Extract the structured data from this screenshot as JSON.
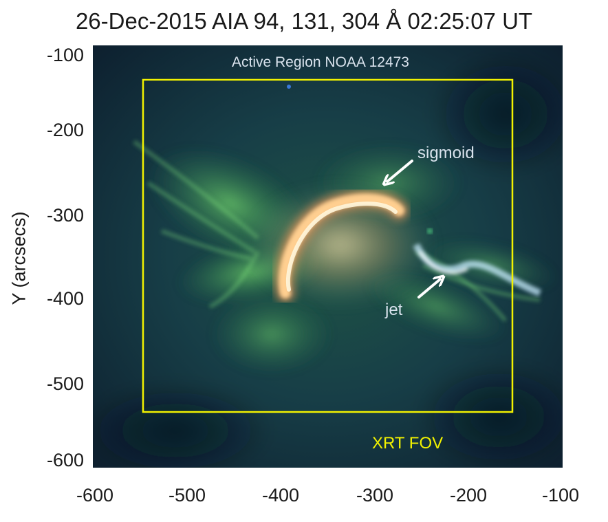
{
  "title": "26-Dec-2015 AIA 94, 131, 304 Å 02:25:07 UT",
  "ylabel": "Y (arcsecs)",
  "yticks": [
    "-100",
    "-200",
    "-300",
    "-400",
    "-500",
    "-600"
  ],
  "xticks": [
    "-600",
    "-500",
    "-400",
    "-300",
    "-200",
    "-100"
  ],
  "annotations": {
    "region": "Active Region NOAA 12473",
    "sigmoid": "sigmoid",
    "jet": "jet",
    "fov": "XRT FOV"
  },
  "colors": {
    "background": "#0e2233",
    "fov_box": "#f2f200",
    "annotation_text": "#d8e2ec",
    "fov_text": "#f2f200",
    "sigmoid_core": "#ffd9a0"
  }
}
